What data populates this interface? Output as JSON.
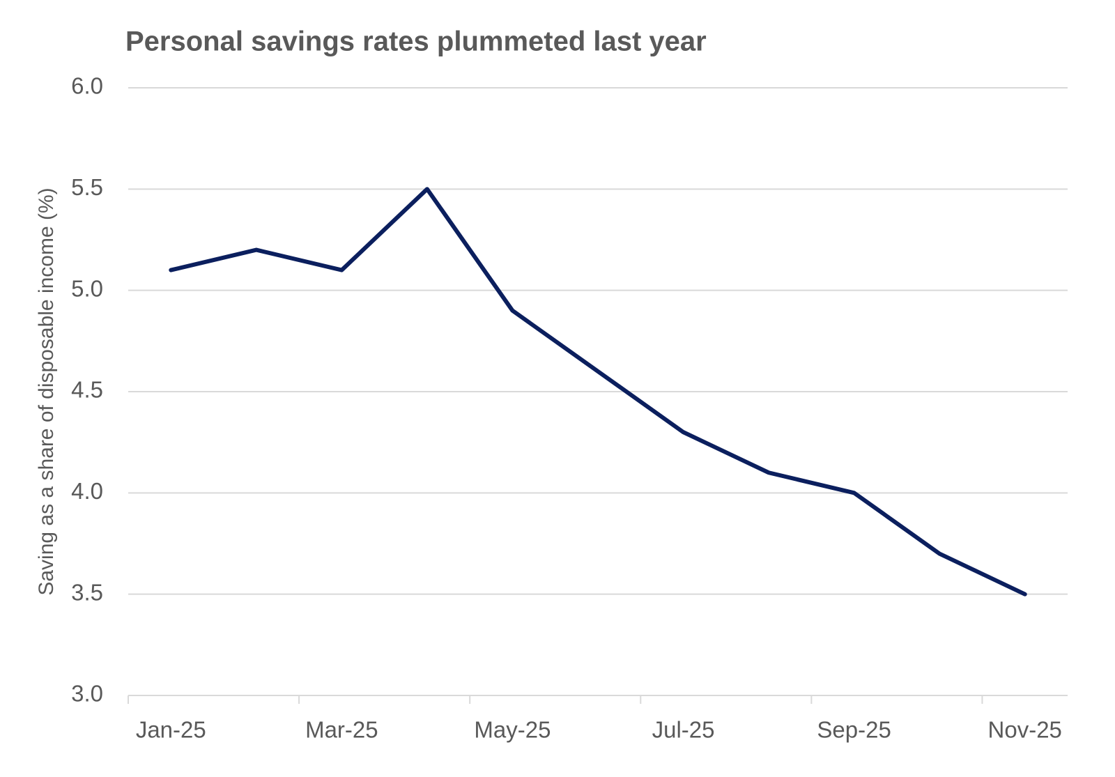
{
  "chart_data": {
    "type": "line",
    "title": "Personal savings rates plummeted last year",
    "y_label": "Saving as a share of disposable income (%)",
    "categories": [
      "Jan-25",
      null,
      "Mar-25",
      null,
      "May-25",
      null,
      "Jul-25",
      null,
      "Sep-25",
      null,
      "Nov-25"
    ],
    "values": [
      5.1,
      5.2,
      5.1,
      5.5,
      4.9,
      4.6,
      4.3,
      4.1,
      4.0,
      3.7,
      3.5
    ],
    "color": "#0b1f5e",
    "ylim": [
      3,
      6
    ],
    "yticks": [
      {
        "value": 3,
        "label": "3.0"
      },
      3.5,
      {
        "value": 4,
        "label": "4.0"
      },
      4.5,
      {
        "value": 5,
        "label": "5.0"
      },
      5.5,
      {
        "value": 6,
        "label": "6.0"
      }
    ],
    "grid": true
  }
}
